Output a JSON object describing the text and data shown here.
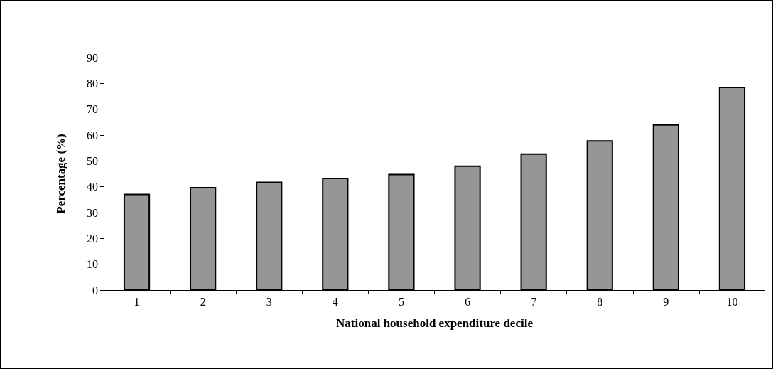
{
  "chart_data": {
    "type": "bar",
    "xlabel": "National household expenditure decile",
    "ylabel": "Percentage (%)",
    "categories": [
      "1",
      "2",
      "3",
      "4",
      "5",
      "6",
      "7",
      "8",
      "9",
      "10"
    ],
    "values": [
      37.3,
      39.9,
      42.0,
      43.5,
      45.0,
      48.2,
      52.9,
      58.0,
      64.2,
      78.7
    ],
    "color": "#969696",
    "ylim": [
      0,
      90
    ],
    "yticks": [
      0,
      10,
      20,
      30,
      40,
      50,
      60,
      70,
      80,
      90
    ],
    "grid": false
  }
}
